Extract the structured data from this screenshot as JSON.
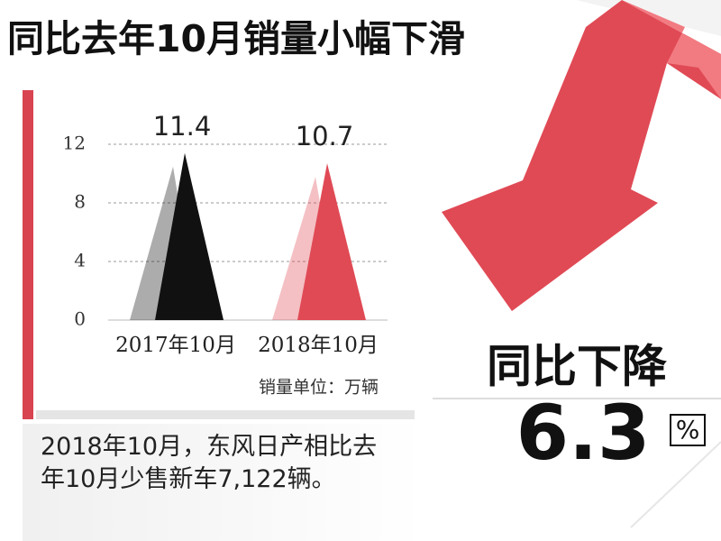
{
  "header": {
    "title": "同比去年10月销量小幅下滑"
  },
  "chart_data": {
    "type": "triangle",
    "categories": [
      "2017年10月",
      "2018年10月"
    ],
    "values": [
      11.4,
      10.7
    ],
    "colors": [
      "#111111",
      "#e04a55"
    ],
    "ylim": [
      0,
      12
    ],
    "yticks": [
      0,
      4,
      8,
      12
    ],
    "grid": true,
    "note": "销量单位：万辆"
  },
  "callout": {
    "label": "同比下降",
    "value": 6.3,
    "unit": "%"
  },
  "caption": "2018年10月，东风日产相比去年10月少售新车7,122辆。"
}
